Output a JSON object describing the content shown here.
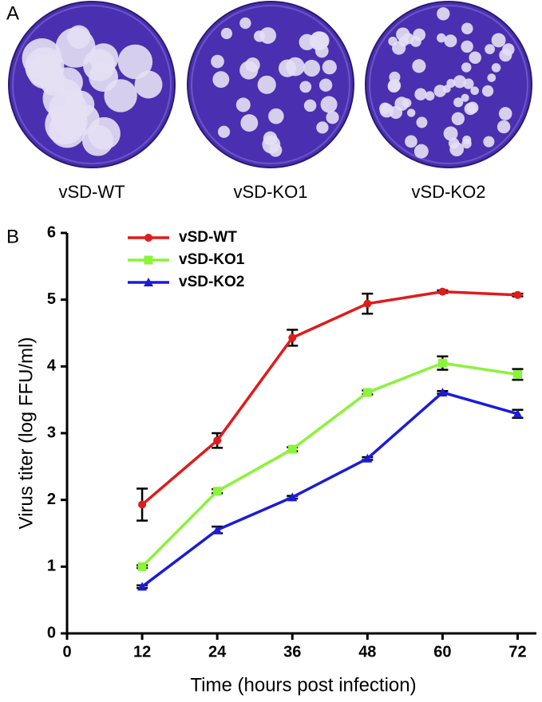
{
  "panel_a": {
    "label": "A",
    "plates": [
      "vSD-WT",
      "vSD-KO1",
      "vSD-KO2"
    ]
  },
  "chart_data": {
    "type": "line",
    "panel_label": "B",
    "x_label": "Time (hours post infection)",
    "y_label": "Virus titer (log FFU/ml)",
    "x": [
      12,
      24,
      36,
      48,
      60,
      72
    ],
    "xlim": [
      0,
      75
    ],
    "xticks": [
      0,
      12,
      24,
      36,
      48,
      60,
      72
    ],
    "ylim": [
      0,
      6
    ],
    "yticks": [
      0,
      1,
      2,
      3,
      4,
      5,
      6
    ],
    "grid": false,
    "legend": "top-left",
    "series": [
      {
        "name": "vSD-WT",
        "color": "#e01b1b",
        "marker": "circle",
        "values": [
          1.93,
          2.89,
          4.43,
          4.94,
          5.12,
          5.07
        ],
        "errors": [
          0.24,
          0.11,
          0.12,
          0.15,
          0.02,
          0.02
        ]
      },
      {
        "name": "vSD-KO1",
        "color": "#8af33a",
        "marker": "square",
        "values": [
          1.0,
          2.13,
          2.76,
          3.61,
          4.05,
          3.88
        ],
        "errors": [
          0.02,
          0.03,
          0.03,
          0.03,
          0.1,
          0.08
        ]
      },
      {
        "name": "vSD-KO2",
        "color": "#1b1bd9",
        "marker": "triangle",
        "values": [
          0.7,
          1.55,
          2.04,
          2.62,
          3.61,
          3.29
        ],
        "errors": [
          0.02,
          0.05,
          0.02,
          0.02,
          0.02,
          0.06
        ]
      }
    ]
  }
}
